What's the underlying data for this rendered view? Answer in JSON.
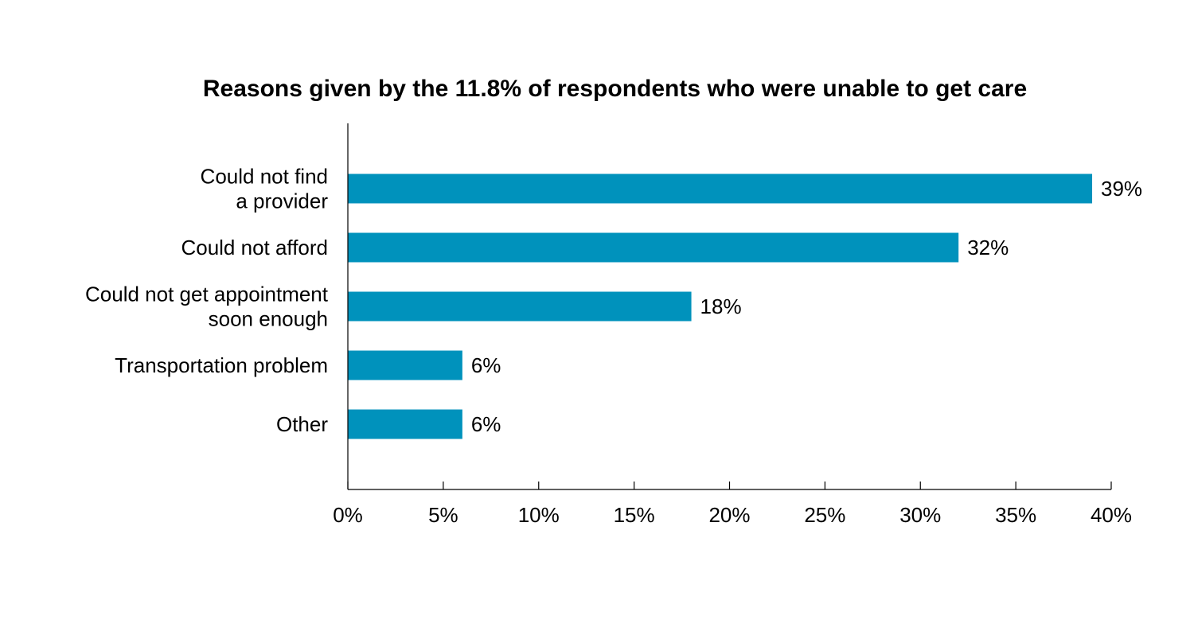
{
  "chart_data": {
    "type": "bar",
    "orientation": "horizontal",
    "title": "Reasons given by the 11.8% of respondents who were unable to get care",
    "xlabel": "",
    "ylabel": "",
    "categories": [
      [
        "Could not find",
        "a provider"
      ],
      [
        "Could not afford"
      ],
      [
        "Could not get appointment",
        "soon enough"
      ],
      [
        "Transportation problem"
      ],
      [
        "Other"
      ]
    ],
    "values": [
      39,
      32,
      18,
      6,
      6
    ],
    "value_labels": [
      "39%",
      "32%",
      "18%",
      "6%",
      "6%"
    ],
    "xlim": [
      0,
      40
    ],
    "x_ticks": [
      0,
      5,
      10,
      15,
      20,
      25,
      30,
      35,
      40
    ],
    "x_tick_labels": [
      "0%",
      "5%",
      "10%",
      "15%",
      "20%",
      "25%",
      "30%",
      "35%",
      "40%"
    ],
    "grid": false,
    "legend": "none",
    "bar_color": "#0092BC",
    "axis_color": "#000000"
  }
}
